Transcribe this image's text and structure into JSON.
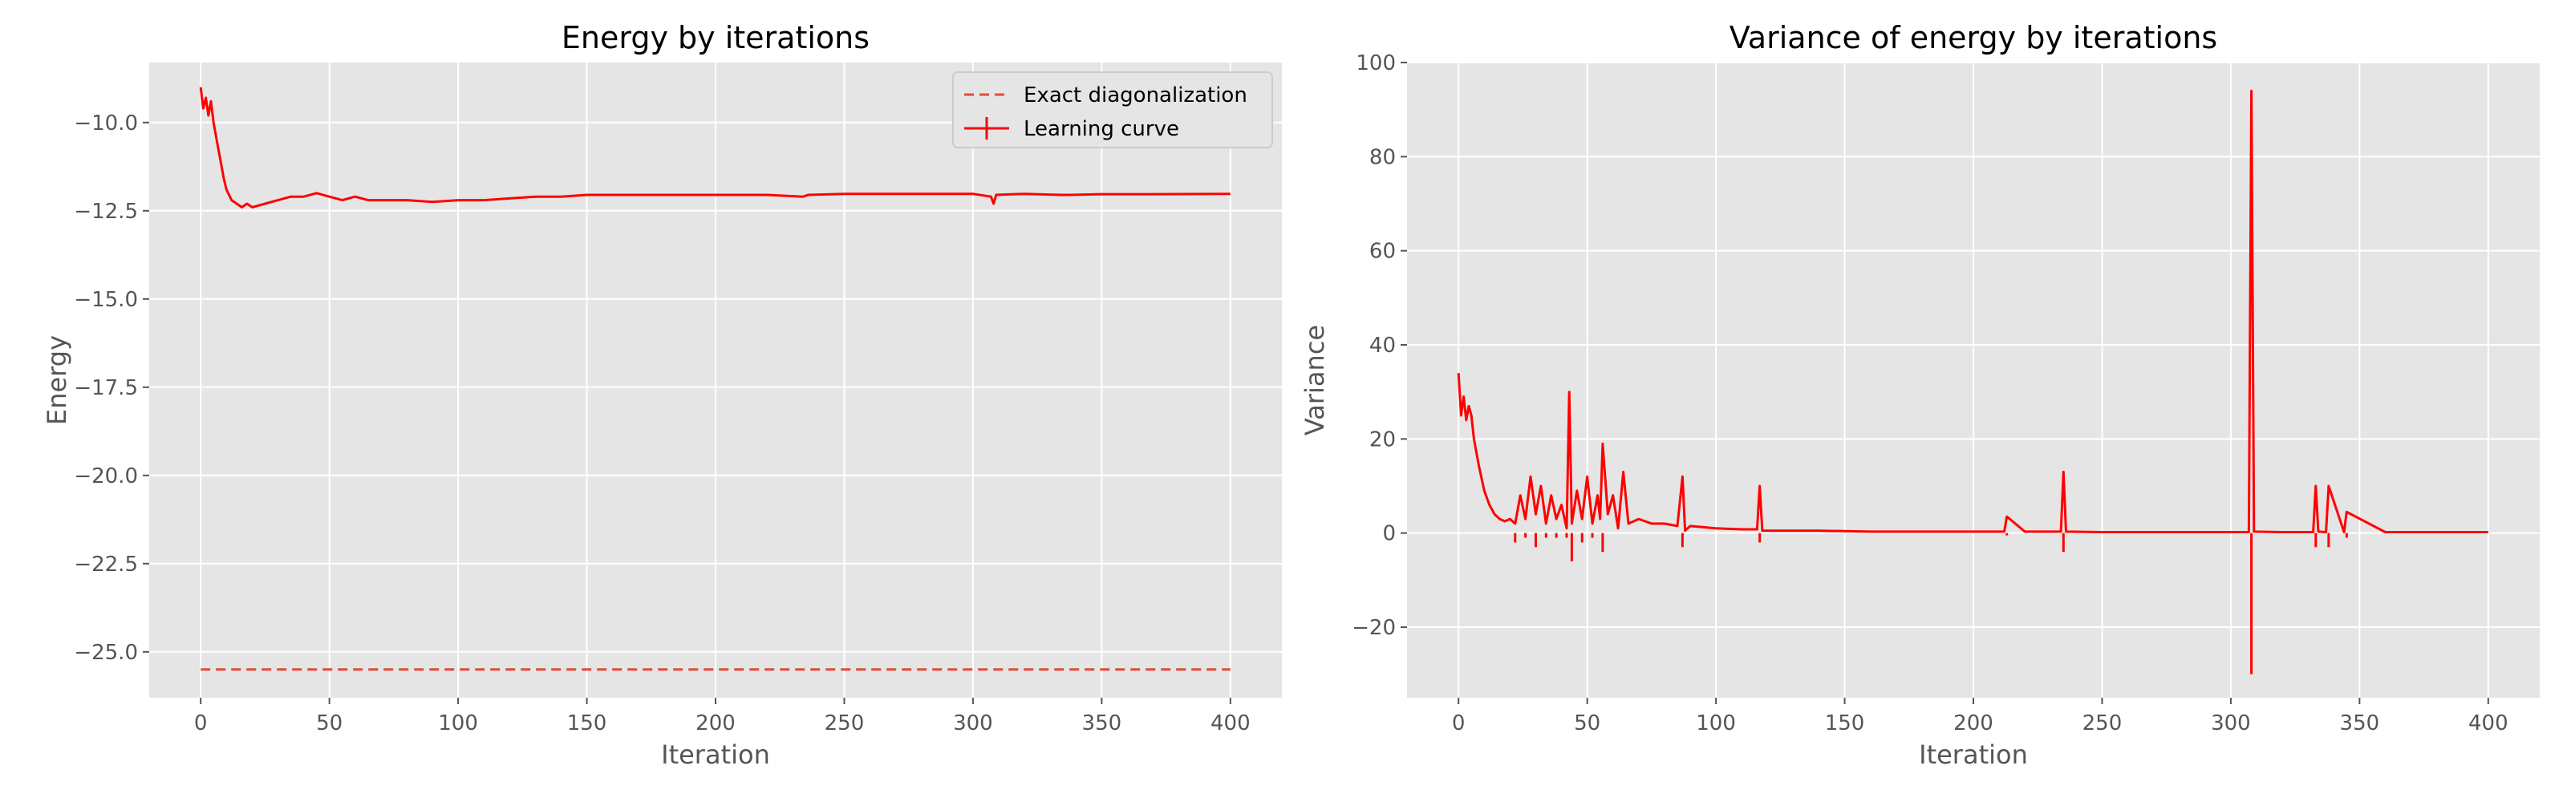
{
  "chart_data": [
    {
      "type": "line",
      "title": "Energy by iterations",
      "xlabel": "Iteration",
      "ylabel": "Energy",
      "xlim": [
        -20,
        420
      ],
      "ylim": [
        -26.3,
        -8.3
      ],
      "xticks": [
        0,
        50,
        100,
        150,
        200,
        250,
        300,
        350,
        400
      ],
      "yticks": [
        -10.0,
        -12.5,
        -15.0,
        -17.5,
        -20.0,
        -22.5,
        -25.0
      ],
      "ytick_labels": [
        "−10.0",
        "−12.5",
        "−15.0",
        "−17.5",
        "−20.0",
        "−22.5",
        "−25.0"
      ],
      "xtick_labels": [
        "0",
        "50",
        "100",
        "150",
        "200",
        "250",
        "300",
        "350",
        "400"
      ],
      "grid": true,
      "legend": "top-right",
      "series": [
        {
          "name": "Exact diagonalization",
          "style": "dashed",
          "color": "#e24a33",
          "x": [
            0,
            400
          ],
          "y": [
            -25.5,
            -25.5
          ]
        },
        {
          "name": "Learning curve",
          "style": "solid-errorbar",
          "color": "#ff0000",
          "x": [
            0,
            1,
            2,
            3,
            4,
            5,
            6,
            7,
            8,
            9,
            10,
            12,
            14,
            16,
            18,
            20,
            25,
            30,
            35,
            40,
            45,
            50,
            55,
            60,
            65,
            70,
            80,
            90,
            100,
            110,
            120,
            130,
            140,
            150,
            160,
            180,
            200,
            220,
            234,
            236,
            250,
            280,
            300,
            307,
            308,
            309,
            320,
            334,
            338,
            350,
            370,
            400
          ],
          "y": [
            -9.0,
            -9.6,
            -9.3,
            -9.8,
            -9.4,
            -10.0,
            -10.4,
            -10.8,
            -11.2,
            -11.6,
            -11.9,
            -12.2,
            -12.3,
            -12.4,
            -12.3,
            -12.4,
            -12.3,
            -12.2,
            -12.1,
            -12.1,
            -12.0,
            -12.1,
            -12.2,
            -12.1,
            -12.2,
            -12.2,
            -12.2,
            -12.25,
            -12.2,
            -12.2,
            -12.15,
            -12.1,
            -12.1,
            -12.05,
            -12.05,
            -12.05,
            -12.05,
            -12.05,
            -12.1,
            -12.05,
            -12.02,
            -12.02,
            -12.02,
            -12.1,
            -12.3,
            -12.05,
            -12.02,
            -12.05,
            -12.05,
            -12.03,
            -12.03,
            -12.02
          ]
        }
      ]
    },
    {
      "type": "line",
      "title": "Variance of energy by iterations",
      "xlabel": "Iteration",
      "ylabel": "Variance",
      "xlim": [
        -20,
        420
      ],
      "ylim": [
        -35,
        100
      ],
      "xticks": [
        0,
        50,
        100,
        150,
        200,
        250,
        300,
        350,
        400
      ],
      "yticks": [
        -20,
        0,
        20,
        40,
        60,
        80,
        100
      ],
      "ytick_labels": [
        "−20",
        "0",
        "20",
        "40",
        "60",
        "80",
        "100"
      ],
      "xtick_labels": [
        "0",
        "50",
        "100",
        "150",
        "200",
        "250",
        "300",
        "350",
        "400"
      ],
      "grid": true,
      "series": [
        {
          "color": "#ff0000",
          "x": [
            0,
            1,
            2,
            3,
            4,
            5,
            6,
            7,
            8,
            10,
            12,
            14,
            16,
            18,
            20,
            22,
            24,
            26,
            28,
            30,
            32,
            34,
            36,
            38,
            40,
            42,
            43,
            44,
            46,
            48,
            50,
            52,
            54,
            55,
            56,
            58,
            60,
            62,
            64,
            66,
            70,
            75,
            80,
            85,
            87,
            88,
            90,
            100,
            110,
            116,
            117,
            118,
            130,
            140,
            150,
            160,
            170,
            180,
            200,
            212,
            213,
            220,
            234,
            235,
            236,
            250,
            280,
            300,
            307,
            308,
            309,
            320,
            332,
            333,
            334,
            337,
            338,
            344,
            345,
            360,
            370,
            400
          ],
          "y": [
            34,
            25,
            29,
            24,
            27,
            25,
            20,
            17,
            14,
            9,
            6,
            4,
            3,
            2.5,
            3,
            2,
            8,
            3,
            12,
            4,
            10,
            2,
            8,
            3,
            6,
            1,
            30,
            2,
            9,
            3,
            12,
            2,
            8,
            3,
            19,
            4,
            8,
            1,
            13,
            2,
            3,
            2,
            2,
            1.5,
            12,
            0.5,
            1.5,
            1,
            0.8,
            0.8,
            10,
            0.5,
            0.5,
            0.5,
            0.4,
            0.3,
            0.3,
            0.3,
            0.3,
            0.3,
            3.5,
            0.3,
            0.3,
            13,
            0.3,
            0.2,
            0.2,
            0.2,
            0.2,
            94,
            0.3,
            0.2,
            0.2,
            10,
            0.3,
            0.2,
            10,
            0.2,
            4.5,
            0.2,
            0.2,
            0.2
          ]
        },
        {
          "color": "#ff0000",
          "style": "error-low",
          "x": [
            22,
            26,
            30,
            34,
            38,
            42,
            44,
            48,
            52,
            56,
            87,
            117,
            213,
            235,
            308,
            333,
            338,
            345
          ],
          "y": [
            -2,
            -1,
            -3,
            -1,
            -1,
            -1,
            -6,
            -2,
            -1,
            -4,
            -3,
            -2,
            -0.5,
            -4,
            -30,
            -3,
            -3,
            -1
          ]
        }
      ]
    }
  ]
}
